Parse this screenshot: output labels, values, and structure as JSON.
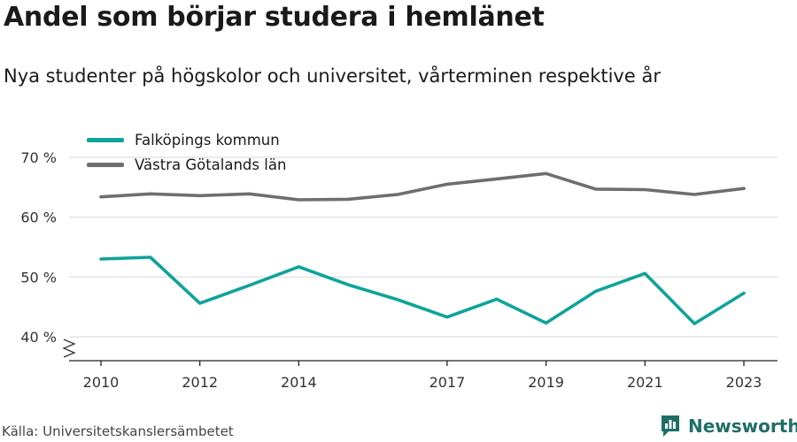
{
  "title": "Andel som börjar studera i hemlänet",
  "subtitle": "Nya studenter på högskolor och universitet, vårterminen respektive år",
  "source": "Källa: Universitetskanslersämbetet",
  "brand": "Newsworthy",
  "colors": {
    "falkoping": "#0fa39a",
    "vastra": "#6e6e72",
    "grid": "#dddddd",
    "axis": "#222222",
    "brand": "#1f6e66"
  },
  "chart_data": {
    "type": "line",
    "title": "Andel som börjar studera i hemlänet",
    "ylim": [
      40,
      70
    ],
    "y_ticks": [
      40,
      50,
      60,
      70
    ],
    "y_tick_labels": [
      "40 %",
      "50 %",
      "60 %",
      "70 %"
    ],
    "x_ticks": [
      2010,
      2012,
      2014,
      2017,
      2019,
      2021,
      2023
    ],
    "x_tick_labels": [
      "2010",
      "2012",
      "2014",
      "2017",
      "2019",
      "2021",
      "2023"
    ],
    "x": [
      2010,
      2011,
      2012,
      2013,
      2014,
      2015,
      2016,
      2017,
      2018,
      2019,
      2020,
      2021,
      2022,
      2023
    ],
    "grid": true,
    "legend_position": "top-left",
    "series": [
      {
        "name": "Falköpings kommun",
        "color": "#0fa39a",
        "values": [
          53.0,
          53.3,
          45.6,
          48.6,
          51.7,
          48.7,
          46.2,
          43.3,
          46.3,
          42.3,
          47.6,
          50.6,
          42.2,
          47.3
        ]
      },
      {
        "name": "Västra Götalands län",
        "color": "#6e6e72",
        "values": [
          63.4,
          63.9,
          63.6,
          63.9,
          62.9,
          63.0,
          63.8,
          65.5,
          66.4,
          67.3,
          64.7,
          64.6,
          63.8,
          64.8
        ]
      }
    ]
  }
}
